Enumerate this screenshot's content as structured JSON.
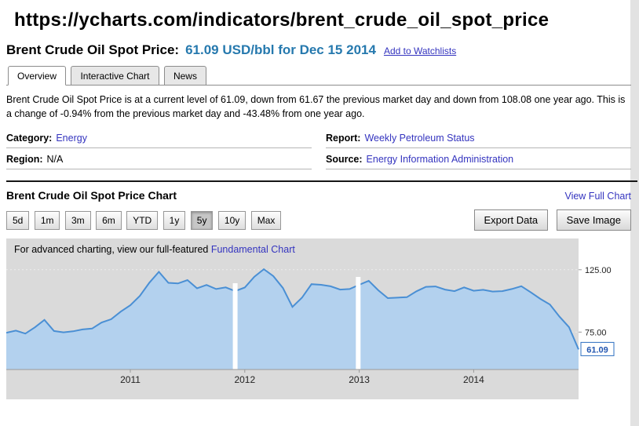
{
  "header": {
    "url": "https://ycharts.com/indicators/brent_crude_oil_spot_price"
  },
  "indicator": {
    "title": "Brent Crude Oil Spot Price:",
    "value_line": "61.09 USD/bbl for Dec 15 2014",
    "add_to_watchlists": "Add to Watchlists"
  },
  "tabs": {
    "items": [
      "Overview",
      "Interactive Chart",
      "News"
    ],
    "active": "Overview"
  },
  "summary": "Brent Crude Oil Spot Price is at a current level of 61.09, down from 61.67 the previous market day and down from 108.08 one year ago. This is a change of -0.94% from the previous market day and -43.48% from one year ago.",
  "info": {
    "category_label": "Category:",
    "category_value": "Energy",
    "region_label": "Region:",
    "region_value": "N/A",
    "report_label": "Report:",
    "report_value": "Weekly Petroleum Status",
    "source_label": "Source:",
    "source_value": "Energy Information Administration"
  },
  "chart_section": {
    "title": "Brent Crude Oil Spot Price Chart",
    "view_full_chart": "View Full Chart",
    "ranges": [
      "5d",
      "1m",
      "3m",
      "6m",
      "YTD",
      "1y",
      "5y",
      "10y",
      "Max"
    ],
    "selected_range": "5y",
    "export_data": "Export Data",
    "save_image": "Save Image",
    "notice_text": "For advanced charting, view our full-featured ",
    "notice_link": "Fundamental Chart"
  },
  "chart_data": {
    "type": "area",
    "title": "Brent Crude Oil Spot Price Chart",
    "series": [
      {
        "name": "Brent Crude Oil Spot Price (USD/bbl)",
        "values": [
          74.5,
          76.2,
          73.8,
          78.8,
          84.8,
          75.9,
          74.8,
          75.6,
          77.1,
          77.8,
          82.7,
          85.3,
          91.4,
          96.5,
          104.0,
          114.6,
          123.3,
          114.5,
          114.0,
          116.7,
          110.1,
          112.8,
          109.5,
          110.8,
          107.9,
          110.7,
          119.3,
          125.4,
          119.8,
          110.3,
          95.2,
          102.6,
          113.4,
          112.9,
          111.7,
          109.1,
          109.5,
          112.9,
          116.1,
          108.5,
          102.2,
          102.6,
          103.0,
          107.7,
          111.3,
          111.6,
          109.1,
          107.8,
          110.8,
          108.1,
          108.9,
          107.5,
          107.8,
          109.5,
          111.8,
          106.8,
          101.6,
          97.1,
          87.4,
          79.0,
          61.09
        ]
      }
    ],
    "x_ticks": [
      {
        "label": "2011",
        "index": 13
      },
      {
        "label": "2012",
        "index": 25
      },
      {
        "label": "2013",
        "index": 37
      },
      {
        "label": "2014",
        "index": 49
      }
    ],
    "y_ticks": [
      {
        "label": "125.00",
        "value": 125
      },
      {
        "label": "75.00",
        "value": 75
      }
    ],
    "last_value": 61.09,
    "last_value_label": "61.09",
    "ylim": [
      45,
      150
    ],
    "gap_fracs": [
      0.4,
      0.615
    ],
    "grid": true,
    "legend": false
  },
  "colors": {
    "accent_teal": "#2679ae",
    "link_blue": "#3434bf",
    "line_blue": "#4a8fd4",
    "fill_blue": "#b3d1ee",
    "plot_bg": "#dadada",
    "marker_blue": "#2356b0"
  }
}
